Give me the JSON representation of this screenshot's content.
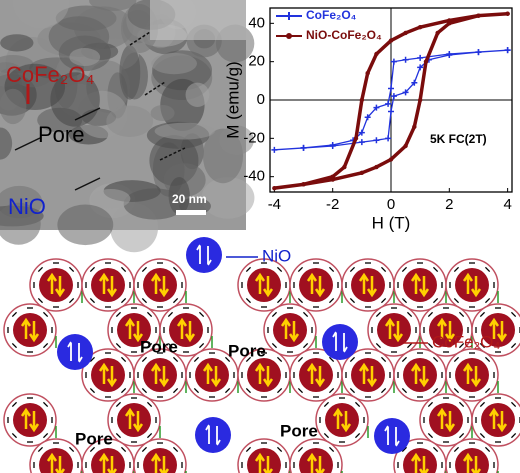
{
  "tem": {
    "labels": [
      "CoFe₂O₄",
      "Pore",
      "NiO",
      "20 nm"
    ]
  },
  "chart_data": {
    "type": "line",
    "x_label": "H (T)",
    "y_label": "M (emu/g)",
    "annotation": "5K FC(2T)",
    "xlim": [
      -4.15,
      4.15
    ],
    "ylim": [
      -48,
      48
    ],
    "xticks": [
      -4,
      -2,
      0,
      2,
      4
    ],
    "yticks": [
      -40,
      -20,
      0,
      20,
      40
    ],
    "series": [
      {
        "name": "CoFe₂O₄",
        "color": "#2233dd",
        "marker": "star",
        "x": [
          4,
          3,
          2,
          1,
          0.5,
          0.1,
          0,
          -0.1,
          -0.5,
          -0.8,
          -1,
          -1.3,
          -2,
          -3,
          -4,
          -3,
          -2,
          -1,
          -0.5,
          -0.1,
          0,
          0.1,
          0.5,
          0.8,
          1,
          1.3,
          2,
          3,
          4
        ],
        "values": [
          26,
          25,
          24,
          22,
          21,
          20,
          6,
          -2,
          -4,
          -9,
          -17,
          -21,
          -23.5,
          -25,
          -26,
          -25,
          -24,
          -22,
          -21,
          -20,
          -6,
          2,
          4,
          9,
          17,
          21,
          23.5,
          25,
          26
        ]
      },
      {
        "name": "NiO-CoFe₂O₄",
        "color": "#7a0c0c",
        "marker": "circle",
        "x": [
          4,
          3,
          2,
          1,
          0.5,
          0,
          -0.5,
          -0.8,
          -1,
          -1.2,
          -1.6,
          -2,
          -3,
          -4,
          -3,
          -2,
          -1,
          -0.5,
          0,
          0.5,
          0.8,
          1,
          1.2,
          1.6,
          2,
          3,
          4
        ],
        "values": [
          45,
          44,
          41.5,
          38,
          35,
          31,
          24,
          14,
          0,
          -20,
          -35,
          -40,
          -44,
          -46,
          -44,
          -41.5,
          -38,
          -35,
          -31,
          -24,
          -14,
          0,
          20,
          35,
          40,
          44,
          45
        ]
      }
    ]
  },
  "schematic": {
    "labels": [
      "NiO",
      "CoFe₂O₄",
      "Pore",
      "Pore",
      "Pore",
      "Pore"
    ]
  }
}
